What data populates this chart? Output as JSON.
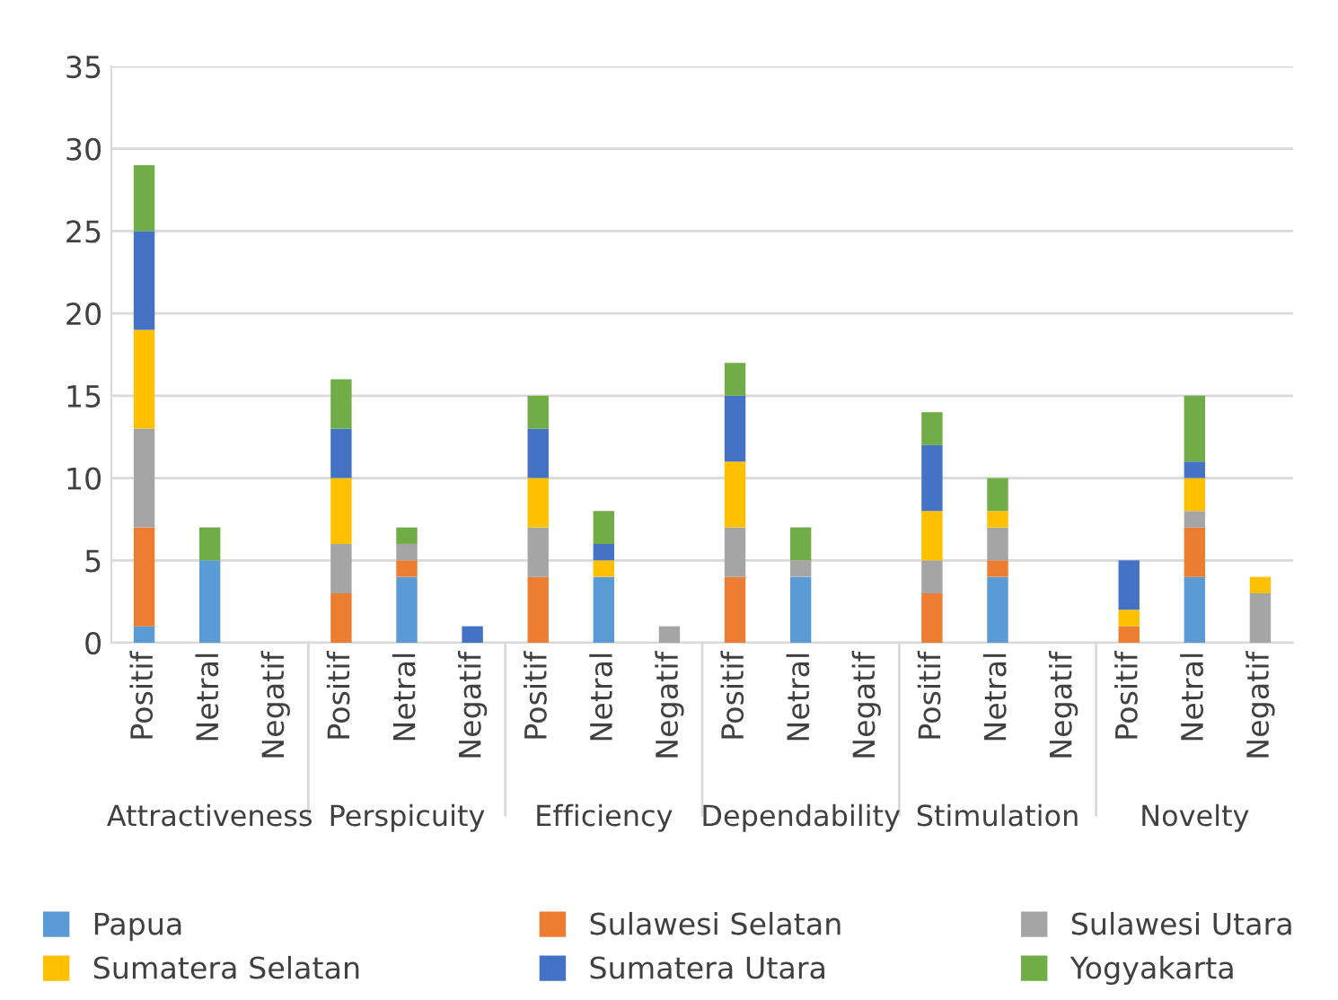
{
  "chart_data": {
    "type": "bar",
    "stacked": true,
    "categories": [
      "Positif",
      "Netral",
      "Negatif",
      "Positif",
      "Netral",
      "Negatif",
      "Positif",
      "Netral",
      "Negatif",
      "Positif",
      "Netral",
      "Negatif",
      "Positif",
      "Netral",
      "Negatif",
      "Positif",
      "Netral",
      "Negatif"
    ],
    "annotations": [
      "Attractiveness",
      "Perspicuity",
      "Efficiency",
      "Dependability",
      "Stimulation",
      "Novelty"
    ],
    "series": [
      {
        "name": "Papua",
        "color": "#5b9bd5",
        "values": [
          1,
          5,
          0,
          0,
          4,
          0,
          0,
          4,
          0,
          0,
          4,
          0,
          0,
          4,
          0,
          0,
          4,
          0
        ]
      },
      {
        "name": "Sulawesi Selatan",
        "color": "#ed7d31",
        "values": [
          6,
          0,
          0,
          3,
          1,
          0,
          4,
          0,
          0,
          4,
          0,
          0,
          3,
          1,
          0,
          1,
          3,
          0
        ]
      },
      {
        "name": "Sulawesi Utara",
        "color": "#a5a5a5",
        "values": [
          6,
          0,
          0,
          3,
          1,
          0,
          3,
          0,
          1,
          3,
          1,
          0,
          2,
          2,
          0,
          0,
          1,
          3
        ]
      },
      {
        "name": "Sumatera Selatan",
        "color": "#ffc000",
        "values": [
          6,
          0,
          0,
          4,
          0,
          0,
          3,
          1,
          0,
          4,
          0,
          0,
          3,
          1,
          0,
          1,
          2,
          1
        ]
      },
      {
        "name": "Sumatera Utara",
        "color": "#4472c4",
        "values": [
          6,
          0,
          0,
          3,
          0,
          1,
          3,
          1,
          0,
          4,
          0,
          0,
          4,
          0,
          0,
          3,
          1,
          0
        ]
      },
      {
        "name": "Yogyakarta",
        "color": "#70ad47",
        "values": [
          4,
          2,
          0,
          3,
          1,
          0,
          2,
          2,
          0,
          2,
          2,
          0,
          2,
          2,
          0,
          0,
          4,
          0
        ]
      }
    ],
    "ylim": [
      0,
      35
    ],
    "yticks": [
      0,
      5,
      10,
      15,
      20,
      25,
      30,
      35
    ],
    "grid": "y",
    "legend": "bottom"
  }
}
